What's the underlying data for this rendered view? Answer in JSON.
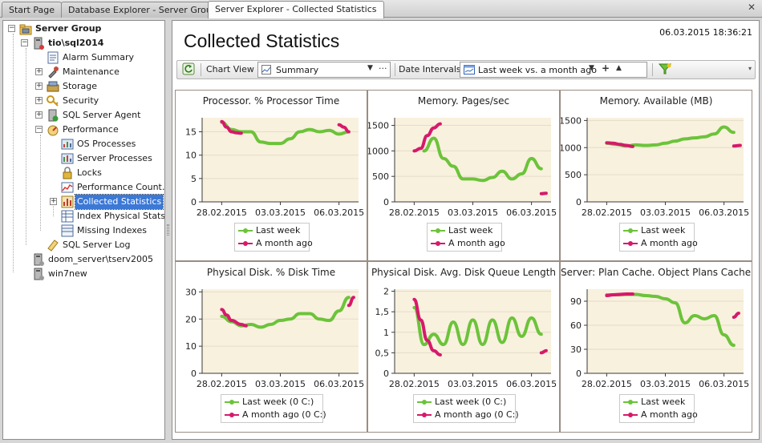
{
  "tabs": [
    {
      "label": "Start Page"
    },
    {
      "label": "Database Explorer - Server Group"
    },
    {
      "label": "Server Explorer - Collected Statistics"
    }
  ],
  "tree": {
    "root": "Server Group",
    "server1": "tio\\sql2014",
    "alarm_summary": "Alarm Summary",
    "maintenance": "Maintenance",
    "storage": "Storage",
    "security": "Security",
    "sql_server_agent": "SQL Server Agent",
    "performance": "Performance",
    "os_processes": "OS Processes",
    "server_processes": "Server Processes",
    "locks": "Locks",
    "performance_counters": "Performance Count…",
    "collected_statistics": "Collected Statistics",
    "index_physical_stats": "Index Physical Stats",
    "missing_indexes": "Missing Indexes",
    "sql_server_log": "SQL Server Log",
    "server2": "doom_server\\tserv2005",
    "server3": "win7new"
  },
  "page": {
    "title": "Collected Statistics",
    "timestamp": "06.03.2015 18:36:21"
  },
  "toolbar": {
    "chart_view_label": "Chart View",
    "chart_view_value": "Summary",
    "date_intervals_label": "Date Intervals",
    "date_intervals_value": "Last week vs. a month ago"
  },
  "colors": {
    "last_week": "#6cc33a",
    "month_ago": "#d6196b",
    "plot_bg": "#f8f1de",
    "grid": "#e5dcc7",
    "axis": "#3a3a3a"
  },
  "chart_data": [
    {
      "type": "line",
      "title": "Processor. % Processor Time",
      "x_ticks": [
        "28.02.2015",
        "03.03.2015",
        "06.03.2015"
      ],
      "xlim": [
        "2015-02-27",
        "2015-03-07"
      ],
      "ylim": [
        0,
        18
      ],
      "y_ticks": [
        "0",
        "5",
        "10",
        "15"
      ],
      "y_tick_values": [
        0,
        5,
        10,
        15
      ],
      "series": [
        {
          "name": "Last week",
          "x": [
            "2015-02-28",
            "2015-02-28 12:00",
            "2015-03-01",
            "2015-03-01 12:00",
            "2015-03-02",
            "2015-03-02 12:00",
            "2015-03-03",
            "2015-03-03 12:00",
            "2015-03-04",
            "2015-03-04 12:00",
            "2015-03-05",
            "2015-03-05 12:00",
            "2015-03-06",
            "2015-03-06 12:00"
          ],
          "values": [
            17.0,
            15.5,
            15.0,
            15.0,
            12.8,
            12.5,
            12.5,
            13.5,
            15.0,
            15.5,
            15.0,
            15.3,
            14.5,
            15.0
          ]
        },
        {
          "name": "A month ago",
          "x": [
            "2015-02-28",
            "2015-02-28 06:00",
            "2015-02-28 12:00",
            "2015-02-28 18:00",
            "2015-03-01",
            "2015-03-06",
            "2015-03-06 06:00",
            "2015-03-06 12:00"
          ],
          "values": [
            17.2,
            16.0,
            15.0,
            14.8,
            14.7,
            16.5,
            16.0,
            15.0
          ]
        }
      ],
      "legend": [
        "Last week",
        "A month ago"
      ]
    },
    {
      "type": "line",
      "title": "Memory. Pages/sec",
      "x_ticks": [
        "28.02.2015",
        "03.03.2015",
        "06.03.2015"
      ],
      "xlim": [
        "2015-02-27",
        "2015-03-07"
      ],
      "ylim": [
        0,
        1650
      ],
      "y_ticks": [
        "0",
        "500",
        "1000",
        "1500"
      ],
      "y_tick_values": [
        0,
        500,
        1000,
        1500
      ],
      "series": [
        {
          "name": "Last week",
          "x": [
            "2015-02-28 12:00",
            "2015-03-01",
            "2015-03-01 12:00",
            "2015-03-02",
            "2015-03-02 12:00",
            "2015-03-03",
            "2015-03-03 12:00",
            "2015-03-04",
            "2015-03-04 12:00",
            "2015-03-05",
            "2015-03-05 12:00",
            "2015-03-06",
            "2015-03-06 12:00"
          ],
          "values": [
            1000,
            1250,
            850,
            700,
            450,
            450,
            420,
            480,
            600,
            450,
            550,
            850,
            650
          ]
        },
        {
          "name": "A month ago",
          "x": [
            "2015-02-28",
            "2015-02-28 08:00",
            "2015-02-28 16:00",
            "2015-03-01",
            "2015-03-01 08:00",
            "2015-03-06 12:00",
            "2015-03-06 18:00"
          ],
          "values": [
            1000,
            1050,
            1300,
            1450,
            1530,
            160,
            170
          ]
        }
      ],
      "legend": [
        "Last week",
        "A month ago"
      ]
    },
    {
      "type": "line",
      "title": "Memory. Available (MB)",
      "x_ticks": [
        "28.02.2015",
        "03.03.2015",
        "06.03.2015"
      ],
      "xlim": [
        "2015-02-27",
        "2015-03-07"
      ],
      "ylim": [
        0,
        1550
      ],
      "y_ticks": [
        "0",
        "500",
        "1000",
        "1500"
      ],
      "y_tick_values": [
        0,
        500,
        1000,
        1500
      ],
      "series": [
        {
          "name": "Last week",
          "x": [
            "2015-02-28",
            "2015-02-28 12:00",
            "2015-03-01",
            "2015-03-01 12:00",
            "2015-03-02",
            "2015-03-02 12:00",
            "2015-03-03",
            "2015-03-03 12:00",
            "2015-03-04",
            "2015-03-04 12:00",
            "2015-03-05",
            "2015-03-05 12:00",
            "2015-03-06",
            "2015-03-06 12:00"
          ],
          "values": [
            1080,
            1060,
            1030,
            1050,
            1040,
            1050,
            1080,
            1120,
            1160,
            1180,
            1200,
            1250,
            1380,
            1280
          ]
        },
        {
          "name": "A month ago",
          "x": [
            "2015-02-28",
            "2015-02-28 08:00",
            "2015-02-28 16:00",
            "2015-03-01",
            "2015-03-01 08:00",
            "2015-03-06 12:00",
            "2015-03-06 20:00"
          ],
          "values": [
            1090,
            1080,
            1060,
            1040,
            1020,
            1030,
            1040
          ]
        }
      ],
      "legend": [
        "Last week",
        "A month ago"
      ]
    },
    {
      "type": "line",
      "title": "Physical Disk. % Disk Time",
      "x_ticks": [
        "28.02.2015",
        "03.03.2015",
        "06.03.2015"
      ],
      "xlim": [
        "2015-02-27",
        "2015-03-07"
      ],
      "ylim": [
        0,
        31
      ],
      "y_ticks": [
        "0",
        "10",
        "20",
        "30"
      ],
      "y_tick_values": [
        0,
        10,
        20,
        30
      ],
      "series": [
        {
          "name": "Last week",
          "x": [
            "2015-02-28",
            "2015-02-28 12:00",
            "2015-03-01",
            "2015-03-01 12:00",
            "2015-03-02",
            "2015-03-02 12:00",
            "2015-03-03",
            "2015-03-03 12:00",
            "2015-03-04",
            "2015-03-04 12:00",
            "2015-03-05",
            "2015-03-05 12:00",
            "2015-03-06",
            "2015-03-06 12:00"
          ],
          "values": [
            21,
            19,
            17.5,
            18,
            17,
            18,
            19.5,
            20,
            22,
            22,
            20,
            19.5,
            23,
            28
          ]
        },
        {
          "name": "A month ago",
          "x": [
            "2015-02-28",
            "2015-02-28 06:00",
            "2015-02-28 12:00",
            "2015-03-01",
            "2015-03-01 06:00",
            "2015-03-06 12:00",
            "2015-03-06 18:00"
          ],
          "values": [
            23.5,
            21.5,
            19.5,
            18.0,
            17.5,
            25,
            28
          ]
        }
      ],
      "legend": [
        "Last week (0 C:)",
        "A month ago (0 C:)"
      ]
    },
    {
      "type": "line",
      "title": "Physical Disk. Avg. Disk Queue Length",
      "x_ticks": [
        "28.02.2015",
        "03.03.2015",
        "06.03.2015"
      ],
      "xlim": [
        "2015-02-27",
        "2015-03-07"
      ],
      "ylim": [
        0,
        2.05
      ],
      "y_ticks": [
        "0",
        "0,5",
        "1",
        "1,5",
        "2"
      ],
      "y_tick_values": [
        0,
        0.5,
        1,
        1.5,
        2
      ],
      "series": [
        {
          "name": "Last week",
          "x": [
            "2015-02-28",
            "2015-02-28 12:00",
            "2015-03-01",
            "2015-03-01 12:00",
            "2015-03-02",
            "2015-03-02 12:00",
            "2015-03-03",
            "2015-03-03 12:00",
            "2015-03-04",
            "2015-03-04 12:00",
            "2015-03-05",
            "2015-03-05 12:00",
            "2015-03-06",
            "2015-03-06 12:00"
          ],
          "values": [
            1.6,
            0.7,
            0.95,
            0.7,
            1.25,
            0.7,
            1.3,
            0.7,
            1.3,
            0.75,
            1.35,
            0.9,
            1.35,
            0.95
          ]
        },
        {
          "name": "A month ago",
          "x": [
            "2015-02-28",
            "2015-02-28 08:00",
            "2015-02-28 16:00",
            "2015-03-01",
            "2015-03-01 08:00",
            "2015-03-06 12:00",
            "2015-03-06 18:00"
          ],
          "values": [
            1.8,
            1.3,
            0.8,
            0.55,
            0.45,
            0.5,
            0.55
          ]
        }
      ],
      "legend": [
        "Last week (0 C:)",
        "A month ago (0 C:)"
      ]
    },
    {
      "type": "line",
      "title": "Server: Plan Cache. Object Plans Cache Hit",
      "x_ticks": [
        "28.02.2015",
        "03.03.2015",
        "06.03.2015"
      ],
      "xlim": [
        "2015-02-27",
        "2015-03-07"
      ],
      "ylim": [
        0,
        105
      ],
      "y_ticks": [
        "0",
        "30",
        "60",
        "90"
      ],
      "y_tick_values": [
        0,
        30,
        60,
        90
      ],
      "series": [
        {
          "name": "Last week",
          "x": [
            "2015-02-28",
            "2015-02-28 12:00",
            "2015-03-01",
            "2015-03-01 12:00",
            "2015-03-02",
            "2015-03-02 12:00",
            "2015-03-03",
            "2015-03-03 12:00",
            "2015-03-04",
            "2015-03-04 12:00",
            "2015-03-05",
            "2015-03-05 12:00",
            "2015-03-06",
            "2015-03-06 12:00"
          ],
          "values": [
            98,
            98,
            98.5,
            98.5,
            97,
            96,
            93,
            88,
            63,
            72,
            68,
            72,
            48,
            35
          ]
        },
        {
          "name": "A month ago",
          "x": [
            "2015-02-28",
            "2015-02-28 08:00",
            "2015-02-28 16:00",
            "2015-03-01",
            "2015-03-01 08:00",
            "2015-03-06 12:00",
            "2015-03-06 18:00"
          ],
          "values": [
            97,
            98,
            98.5,
            99,
            99,
            70,
            75
          ]
        }
      ],
      "legend": [
        "Last week",
        "A month ago"
      ]
    }
  ]
}
